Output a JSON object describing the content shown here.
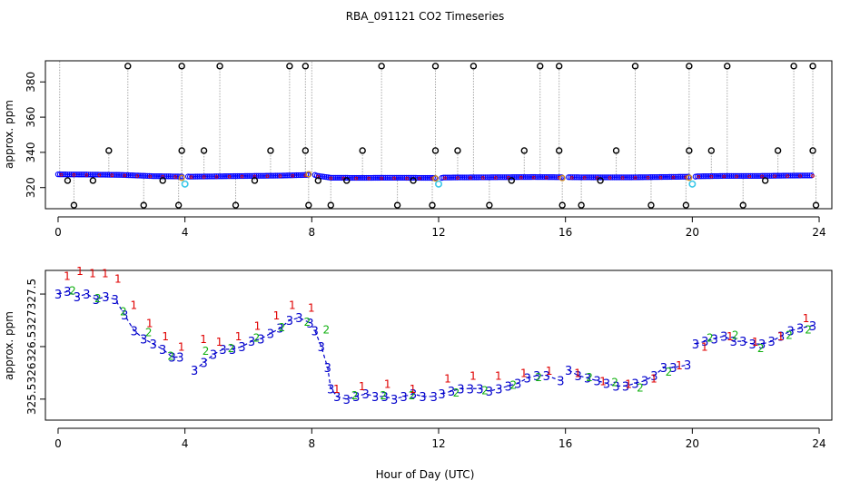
{
  "figure_title": "RBA_091121  CO2 Timeseries",
  "xlabel": "Hour of Day (UTC)",
  "chart_data": [
    {
      "type": "scatter",
      "panel": "top",
      "title": "RBA_091121  CO2 Timeseries",
      "xlabel": "",
      "ylabel": "approx. ppm",
      "xlim": [
        -0.4,
        24.4
      ],
      "ylim": [
        308,
        392
      ],
      "xticks": [
        0,
        4,
        8,
        12,
        16,
        20,
        24
      ],
      "yticks": [
        320,
        340,
        360,
        380
      ],
      "baseline_segments": [
        {
          "x": [
            0,
            1.0,
            2.0,
            3.0,
            3.9
          ],
          "y": [
            327.5,
            327.4,
            327.2,
            326.5,
            326.3
          ]
        },
        {
          "x": [
            4.1,
            5.0,
            6.0,
            7.0,
            7.9
          ],
          "y": [
            326.2,
            326.4,
            326.6,
            326.8,
            327.2
          ]
        },
        {
          "x": [
            8.1,
            8.6,
            9.5,
            10.5,
            11.9
          ],
          "y": [
            326.9,
            325.6,
            325.5,
            325.6,
            325.5
          ]
        },
        {
          "x": [
            12.1,
            13.0,
            14.0,
            15.0,
            15.9
          ],
          "y": [
            325.7,
            325.8,
            325.9,
            326.0,
            325.9
          ]
        },
        {
          "x": [
            16.1,
            17.0,
            18.0,
            19.0,
            19.9
          ],
          "y": [
            325.9,
            325.8,
            325.8,
            326.0,
            326.2
          ]
        },
        {
          "x": [
            20.1,
            21.0,
            22.0,
            23.0,
            23.8
          ],
          "y": [
            326.4,
            326.6,
            326.6,
            326.8,
            326.9
          ]
        }
      ],
      "outliers_high": [
        2.2,
        3.9,
        5.1,
        7.3,
        7.8,
        10.2,
        11.9,
        13.1,
        15.2,
        15.8,
        18.2,
        19.9,
        21.1,
        23.2,
        23.8
      ],
      "outliers_mid": [
        1.6,
        3.9,
        4.6,
        6.7,
        7.8,
        9.6,
        11.9,
        12.6,
        14.7,
        15.8,
        17.6,
        19.9,
        20.6,
        22.7,
        23.8
      ],
      "outliers_low": [
        0.5,
        2.7,
        3.8,
        5.6,
        7.9,
        8.6,
        10.7,
        11.8,
        13.6,
        15.9,
        16.5,
        18.7,
        19.8,
        21.6,
        23.9
      ],
      "outliers_minor": [
        0.3,
        1.1,
        3.3,
        6.2,
        8.2,
        9.1,
        11.2,
        14.3,
        17.1,
        22.3
      ],
      "cyan_points": [
        {
          "x": 4.0,
          "y": 322
        },
        {
          "x": 12.0,
          "y": 322
        },
        {
          "x": 20.0,
          "y": 322
        }
      ],
      "orange_points": [
        {
          "x": 3.9,
          "y": 325.5
        },
        {
          "x": 7.9,
          "y": 327.6
        },
        {
          "x": 11.9,
          "y": 325.2
        },
        {
          "x": 15.9,
          "y": 325.4
        },
        {
          "x": 19.9,
          "y": 325.6
        }
      ],
      "colors": {
        "baseline": "#0000ff",
        "outlier": "#000000",
        "stems": "#a8a8a8",
        "cyan": "#3cc8e8",
        "orange": "#d08a20",
        "red": "#e00000"
      }
    },
    {
      "type": "line",
      "panel": "bottom",
      "xlabel": "Hour of Day (UTC)",
      "ylabel": "approx. ppm",
      "xlim": [
        -0.4,
        24.4
      ],
      "ylim": [
        325.1,
        327.95
      ],
      "xticks": [
        0,
        4,
        8,
        12,
        16,
        20,
        24
      ],
      "yticks": [
        325.5,
        326.5,
        327.5
      ],
      "ytick_labels": [
        "325.5",
        "326",
        "326.5",
        "327",
        "327.5"
      ],
      "ytick_label_values": [
        325.5,
        326.0,
        326.5,
        327.0,
        327.5
      ],
      "series": [
        {
          "name": "3",
          "label": "3",
          "color": "#0000cc",
          "segments": [
            {
              "x": [
                0.0,
                0.3,
                0.6,
                0.9,
                1.2,
                1.5,
                1.8,
                2.1,
                2.4,
                2.7,
                3.0,
                3.3,
                3.6,
                3.85
              ],
              "y": [
                327.5,
                327.55,
                327.45,
                327.5,
                327.4,
                327.45,
                327.4,
                327.1,
                326.8,
                326.65,
                326.55,
                326.45,
                326.3,
                326.3
              ]
            },
            {
              "x": [
                4.3,
                4.6,
                4.9,
                5.2,
                5.5,
                5.8,
                6.1,
                6.4,
                6.7,
                7.0,
                7.3,
                7.6,
                7.95
              ],
              "y": [
                326.05,
                326.2,
                326.35,
                326.45,
                326.45,
                326.5,
                326.6,
                326.65,
                326.75,
                326.85,
                327.0,
                327.05,
                326.95
              ]
            },
            {
              "x": [
                8.1,
                8.3,
                8.5,
                8.6,
                8.8,
                9.1,
                9.4,
                9.7,
                10.0,
                10.3,
                10.6,
                10.9,
                11.2,
                11.5,
                11.85
              ],
              "y": [
                326.8,
                326.5,
                326.1,
                325.7,
                325.55,
                325.5,
                325.55,
                325.6,
                325.55,
                325.55,
                325.5,
                325.55,
                325.6,
                325.55,
                325.55
              ]
            },
            {
              "x": [
                12.1,
                12.4,
                12.7,
                13.0,
                13.3,
                13.6,
                13.9,
                14.2,
                14.5,
                14.8,
                15.1,
                15.4,
                15.85
              ],
              "y": [
                325.6,
                325.65,
                325.7,
                325.7,
                325.7,
                325.65,
                325.7,
                325.75,
                325.8,
                325.9,
                325.95,
                325.95,
                325.85
              ]
            },
            {
              "x": [
                16.1,
                16.4,
                16.7,
                17.0,
                17.3,
                17.6,
                17.9,
                18.2,
                18.5,
                18.8,
                19.1,
                19.4,
                19.85
              ],
              "y": [
                326.05,
                325.95,
                325.9,
                325.85,
                325.8,
                325.75,
                325.75,
                325.8,
                325.85,
                325.95,
                326.1,
                326.1,
                326.15
              ]
            },
            {
              "x": [
                20.1,
                20.4,
                20.7,
                21.0,
                21.3,
                21.6,
                21.9,
                22.2,
                22.5,
                22.8,
                23.1,
                23.4,
                23.8
              ],
              "y": [
                326.55,
                326.6,
                326.65,
                326.7,
                326.6,
                326.6,
                326.55,
                326.55,
                326.6,
                326.7,
                326.8,
                326.85,
                326.9
              ]
            }
          ]
        },
        {
          "name": "2",
          "label": "2",
          "color": "#10b010",
          "x": [
            0.4,
            1.2,
            2.0,
            2.8,
            3.5,
            4.6,
            5.4,
            6.2,
            7.0,
            7.8,
            8.4,
            9.3,
            10.2,
            11.1,
            12.5,
            13.4,
            14.3,
            15.1,
            16.7,
            17.5,
            18.3,
            19.2,
            20.5,
            21.3,
            22.1,
            23.0,
            23.6
          ],
          "y": [
            327.6,
            327.45,
            327.2,
            326.8,
            326.35,
            326.45,
            326.5,
            326.7,
            326.9,
            327.0,
            326.85,
            325.6,
            325.6,
            325.6,
            325.65,
            325.7,
            325.8,
            325.95,
            325.95,
            325.85,
            325.75,
            326.05,
            326.7,
            326.75,
            326.5,
            326.75,
            326.85
          ]
        },
        {
          "name": "1",
          "label": "1",
          "color": "#e00000",
          "x": [
            0.2,
            0.6,
            1.0,
            1.4,
            1.8,
            2.3,
            2.8,
            3.3,
            3.8,
            4.5,
            5.0,
            5.6,
            6.2,
            6.8,
            7.3,
            7.9,
            8.7,
            9.5,
            10.3,
            11.1,
            12.2,
            13.0,
            13.8,
            14.6,
            15.4,
            16.3,
            17.1,
            17.9,
            18.7,
            19.5,
            20.3,
            21.1,
            21.9,
            22.7,
            23.5
          ],
          "y": [
            327.75,
            327.85,
            327.8,
            327.8,
            327.7,
            327.2,
            326.85,
            326.6,
            326.4,
            326.55,
            326.5,
            326.6,
            326.8,
            327.0,
            327.2,
            327.15,
            325.6,
            325.65,
            325.7,
            325.6,
            325.8,
            325.85,
            325.85,
            325.9,
            325.95,
            325.9,
            325.75,
            325.7,
            325.8,
            326.05,
            326.4,
            326.6,
            326.5,
            326.6,
            326.95
          ]
        }
      ]
    }
  ]
}
